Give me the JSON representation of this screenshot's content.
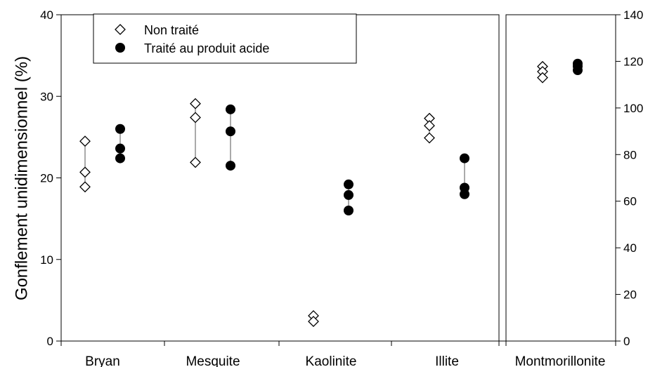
{
  "chart_data": {
    "type": "scatter",
    "ylabel": "Gonflement unidimensionnel (%)",
    "panels": [
      {
        "name": "left",
        "y_axis": "left",
        "ylim": [
          0,
          40
        ],
        "yticks": [
          "0",
          "10",
          "20",
          "30",
          "40"
        ],
        "categories": [
          "Bryan",
          "Mesquite",
          "Kaolinite",
          "Illite"
        ]
      },
      {
        "name": "right",
        "y_axis": "right",
        "ylim": [
          0,
          140
        ],
        "yticks": [
          "0",
          "20",
          "40",
          "60",
          "80",
          "100",
          "120",
          "140"
        ],
        "categories": [
          "Montmorillonite"
        ]
      }
    ],
    "series": [
      {
        "name": "Non traité",
        "marker": "open-diamond",
        "values": {
          "Bryan": [
            24.5,
            20.7,
            18.9
          ],
          "Mesquite": [
            29.1,
            27.4,
            21.9
          ],
          "Kaolinite": [
            3.1,
            2.4
          ],
          "Illite": [
            27.3,
            26.4,
            24.9
          ],
          "Montmorillonite": [
            117.8,
            115.6,
            113.0
          ]
        }
      },
      {
        "name": "Traité au produit acide",
        "marker": "filled-circle",
        "values": {
          "Bryan": [
            26.0,
            23.6,
            22.4
          ],
          "Mesquite": [
            28.4,
            25.7,
            21.5
          ],
          "Kaolinite": [
            19.2,
            17.9,
            16.0
          ],
          "Illite": [
            22.4,
            18.8,
            18.0
          ],
          "Montmorillonite": [
            119.0,
            117.9,
            116.2
          ]
        }
      }
    ],
    "legend": {
      "position": "top-left"
    }
  },
  "colors": {
    "open_marker_fill": "#ffffff",
    "filled_marker": "#000000",
    "range_line": "#555555"
  }
}
